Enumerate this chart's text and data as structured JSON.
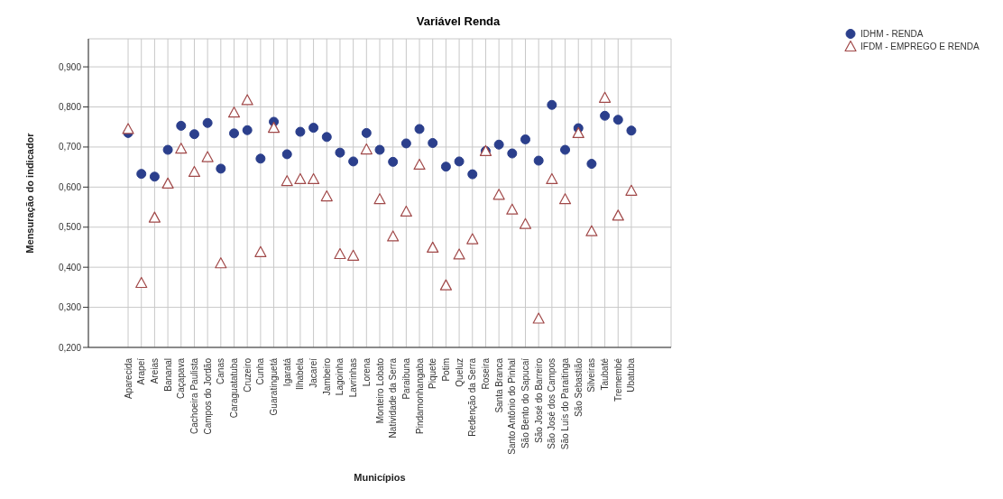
{
  "chart_data": {
    "type": "scatter",
    "title": "Variável Renda",
    "xlabel": "Municípios",
    "ylabel": "Mensuração do indicador",
    "categories": [
      "Aparecida",
      "Arapeí",
      "Areias",
      "Bananal",
      "Caçapava",
      "Cachoeira Paulista",
      "Campos do Jordão",
      "Canas",
      "Caraguatatuba",
      "Cruzeiro",
      "Cunha",
      "Guaratinguetá",
      "Igaratá",
      "Ilhabela",
      "Jacareí",
      "Jambeiro",
      "Lagoinha",
      "Lavrinhas",
      "Lorena",
      "Monteiro Lobato",
      "Natividade da Serra",
      "Paraibuna",
      "Pindamonhangaba",
      "Piquete",
      "Potim",
      "Queluz",
      "Redenção da Serra",
      "Roseira",
      "Santa Branca",
      "Santo Antônio do Pinhal",
      "São Bento do Sapucaí",
      "São José do Barreiro",
      "São José dos Campos",
      "São Luís do Paraitinga",
      "São Sebastião",
      "Silveiras",
      "Taubaté",
      "Tremembé",
      "Ubatuba"
    ],
    "series": [
      {
        "name": "IDHM -  RENDA",
        "color": "#2b3f8c",
        "marker": "circle",
        "values": [
          0.735,
          0.633,
          0.626,
          0.693,
          0.753,
          0.732,
          0.76,
          0.646,
          0.734,
          0.742,
          0.671,
          0.763,
          0.682,
          0.738,
          0.748,
          0.725,
          0.686,
          0.664,
          0.735,
          0.693,
          0.663,
          0.709,
          0.745,
          0.71,
          0.651,
          0.664,
          0.632,
          0.69,
          0.706,
          0.684,
          0.719,
          0.666,
          0.805,
          0.693,
          0.747,
          0.658,
          0.778,
          0.768,
          0.741
        ]
      },
      {
        "name": "IFDM -  EMPREGO E RENDA",
        "color": "#a04848",
        "marker": "triangle",
        "values": [
          0.745,
          0.361,
          0.524,
          0.609,
          0.696,
          0.638,
          0.675,
          0.41,
          0.786,
          0.817,
          0.438,
          0.748,
          0.615,
          0.62,
          0.62,
          0.577,
          0.433,
          0.429,
          0.694,
          0.57,
          0.477,
          0.539,
          0.656,
          0.449,
          0.355,
          0.432,
          0.47,
          0.69,
          0.581,
          0.544,
          0.508,
          0.272,
          0.62,
          0.57,
          0.735,
          0.49,
          0.823,
          0.529,
          0.591
        ]
      }
    ],
    "ylim": [
      0.2,
      0.97
    ],
    "yticks": [
      {
        "value": 0.2,
        "label": "0,200"
      },
      {
        "value": 0.3,
        "label": "0,300"
      },
      {
        "value": 0.4,
        "label": "0,400"
      },
      {
        "value": 0.5,
        "label": "0,500"
      },
      {
        "value": 0.6,
        "label": "0,600"
      },
      {
        "value": 0.7,
        "label": "0,700"
      },
      {
        "value": 0.8,
        "label": "0,800"
      },
      {
        "value": 0.9,
        "label": "0,900"
      }
    ],
    "grid": true,
    "legend": "top right"
  }
}
